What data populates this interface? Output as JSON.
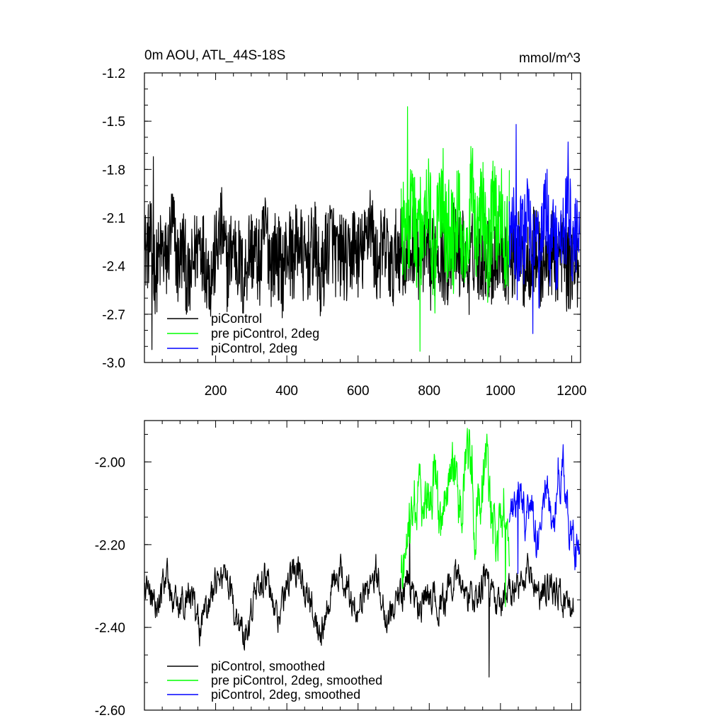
{
  "chart_data": [
    {
      "type": "line",
      "title": "0m AOU, ATL_44S-18S",
      "units": "mmol/m^3",
      "xlim": [
        0,
        1225
      ],
      "ylim": [
        -3.0,
        -1.2
      ],
      "x_ticks": [
        200,
        400,
        600,
        800,
        1000,
        1200
      ],
      "x_tick_labels": [
        "200",
        "400",
        "600",
        "800",
        "1000",
        "1200"
      ],
      "y_ticks": [
        -1.2,
        -1.5,
        -1.8,
        -2.1,
        -2.4,
        -2.7,
        -3.0
      ],
      "y_tick_labels": [
        "-1.2",
        "-1.5",
        "-1.8",
        "-2.1",
        "-2.4",
        "-2.7",
        "-3.0"
      ],
      "grid": false,
      "legend_position": "bottom-left",
      "series": [
        {
          "name": "piControl",
          "color": "#000000",
          "x_range": [
            1,
            1220
          ],
          "values": [
            -2.32,
            -2.25,
            -2.45,
            -2.3,
            -2.38,
            -2.12,
            -2.4,
            -2.28,
            -2.55,
            -2.34,
            -2.22,
            -2.36,
            -2.48,
            -2.3,
            -2.18,
            -2.42,
            -2.26,
            -2.35,
            -2.5,
            -2.28,
            -2.32,
            -2.4,
            -2.15,
            -2.38,
            -2.3,
            -2.45,
            -2.28,
            -2.36,
            -2.22,
            -2.4,
            -2.33,
            -2.27,
            -2.52,
            -2.3,
            -2.2,
            -2.38,
            -2.31,
            -2.42,
            -2.25,
            -2.35,
            -2.3,
            -2.05,
            -2.4,
            -2.32,
            -2.28,
            -2.45,
            -2.26,
            -2.34,
            -2.38,
            -2.22,
            -2.36,
            -2.3,
            -2.42,
            -2.28,
            -2.33,
            -2.4,
            -2.25,
            -2.35,
            -2.3,
            -2.44,
            -2.28,
            -2.36,
            -2.32,
            -2.4,
            -2.3,
            -2.26,
            -2.38,
            -2.34,
            -2.3,
            -2.42,
            -2.35,
            -2.28,
            -2.4,
            -2.36,
            -2.32,
            -2.38,
            -2.3,
            -2.44,
            -2.34,
            -2.4
          ],
          "peak_max": -1.72,
          "trough_min": -2.92
        },
        {
          "name": "pre piControl, 2deg",
          "color": "#00ff00",
          "x_range": [
            721,
            1025
          ],
          "values": [
            -2.05,
            -2.3,
            -2.15,
            -1.95,
            -2.25,
            -2.1,
            -2.35,
            -2.0,
            -2.18,
            -2.4,
            -2.08,
            -1.9,
            -2.22,
            -2.12,
            -2.3,
            -2.02,
            -2.2,
            -2.45,
            -2.1,
            -1.85,
            -2.28,
            -2.15,
            -2.05,
            -2.35,
            -2.18,
            -1.98,
            -2.25,
            -2.08,
            -2.32,
            -2.12
          ],
          "peak_max": -1.41,
          "trough_min": -2.93
        },
        {
          "name": "piControl, 2deg",
          "color": "#0000ff",
          "x_range": [
            1025,
            1222
          ],
          "values": [
            -2.2,
            -2.05,
            -2.35,
            -2.15,
            -2.28,
            -1.95,
            -2.25,
            -2.1,
            -2.4,
            -2.18,
            -2.0,
            -2.3,
            -2.12,
            -2.38,
            -2.08,
            -2.22,
            -1.88,
            -2.32,
            -2.15,
            -2.26
          ],
          "peak_max": -1.52,
          "trough_min": -2.82
        }
      ]
    },
    {
      "type": "line",
      "xlim": [
        0,
        1225
      ],
      "ylim": [
        -2.6,
        -1.9
      ],
      "y_ticks": [
        -2.0,
        -2.2,
        -2.4,
        -2.6
      ],
      "y_tick_labels": [
        "-2.00",
        "-2.20",
        "-2.40",
        "-2.60"
      ],
      "grid": false,
      "legend_position": "bottom-left",
      "series": [
        {
          "name": "piControl, smoothed",
          "color": "#000000",
          "x_range": [
            1,
            1205
          ],
          "values": [
            -2.3,
            -2.34,
            -2.28,
            -2.36,
            -2.3,
            -2.4,
            -2.33,
            -2.26,
            -2.35,
            -2.42,
            -2.32,
            -2.28,
            -2.38,
            -2.3,
            -2.24,
            -2.34,
            -2.4,
            -2.3,
            -2.27,
            -2.36,
            -2.32,
            -2.25,
            -2.38,
            -2.33,
            -2.29,
            -2.36,
            -2.31,
            -2.35,
            -2.28,
            -2.3,
            -2.34,
            -2.27,
            -2.36,
            -2.32,
            -2.3,
            -2.26,
            -2.34,
            -2.29,
            -2.33,
            -2.36
          ],
          "peak_max": -2.14,
          "trough_min": -2.52
        },
        {
          "name": "pre piControl, 2deg, smoothed",
          "color": "#00ff00",
          "x_range": [
            721,
            1025
          ],
          "values": [
            -2.3,
            -2.2,
            -2.12,
            -2.05,
            -2.15,
            -2.08,
            -2.02,
            -2.18,
            -2.1,
            -2.0,
            -2.12,
            -2.06,
            -1.98,
            -2.15,
            -2.08,
            -2.02,
            -2.14,
            -2.2,
            -2.1,
            -2.22
          ],
          "peak_max": -1.96,
          "trough_min": -2.35
        },
        {
          "name": "piControl, 2deg, smoothed",
          "color": "#0000ff",
          "x_range": [
            1025,
            1222
          ],
          "values": [
            -2.18,
            -2.1,
            -2.05,
            -2.15,
            -2.08,
            -2.2,
            -2.12,
            -2.06,
            -2.16,
            -2.1,
            -2.02,
            -2.14,
            -2.2,
            -2.24
          ],
          "peak_max": -1.99,
          "trough_min": -2.27
        }
      ]
    }
  ]
}
